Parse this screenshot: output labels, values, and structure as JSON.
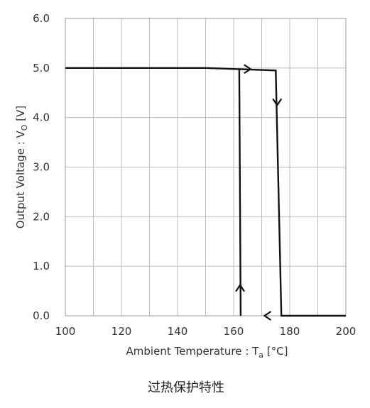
{
  "chart_data": {
    "type": "line",
    "caption": "过热保护特性",
    "xlabel": {
      "main": "Ambient Temperature : T",
      "sub": "a",
      "unit": " [°C]"
    },
    "ylabel": {
      "main": "Output Voltage : V",
      "sub": "O",
      "unit": " [V]"
    },
    "xlim": [
      100,
      200
    ],
    "ylim": [
      0,
      6
    ],
    "x_ticks": [
      "100",
      "120",
      "140",
      "160",
      "180",
      "200"
    ],
    "y_ticks": [
      "0.0",
      "1.0",
      "2.0",
      "3.0",
      "4.0",
      "5.0",
      "6.0"
    ],
    "grid": true,
    "series": [
      {
        "points": [
          [
            100,
            5.0
          ],
          [
            150,
            5.0
          ],
          [
            175,
            4.95
          ],
          [
            177,
            0.0
          ],
          [
            200,
            0.0
          ]
        ]
      },
      {
        "points": [
          [
            162.5,
            0.0
          ],
          [
            162,
            4.97
          ]
        ]
      }
    ],
    "arrows": [
      {
        "x": 166,
        "y": 4.98,
        "dir": "right"
      },
      {
        "x": 175.5,
        "y": 4.25,
        "dir": "down"
      },
      {
        "x": 171,
        "y": 0.0,
        "dir": "left"
      },
      {
        "x": 162.3,
        "y": 0.62,
        "dir": "up"
      }
    ],
    "colors": {
      "line": "#111111",
      "grid": "#bdbdbd",
      "frame": "#999999"
    }
  }
}
